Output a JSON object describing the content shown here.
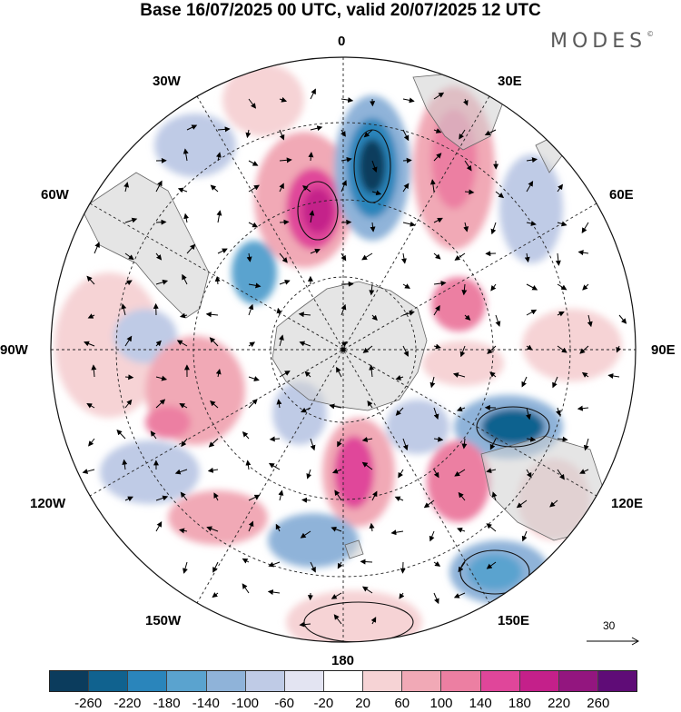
{
  "title": "Base 16/07/2025 00 UTC, valid 20/07/2025 12 UTC",
  "brand": "MODES",
  "brand_mark": "©",
  "map": {
    "projection": "south-polar-stereographic",
    "longitude_labels": [
      "0",
      "30E",
      "60E",
      "90E",
      "120E",
      "150E",
      "180",
      "150W",
      "120W",
      "90W",
      "60W",
      "30W"
    ]
  },
  "vector_scale": {
    "value": "30"
  },
  "colorbar": {
    "colors": [
      "#0b3c5d",
      "#10628f",
      "#2a85bb",
      "#5aa3cf",
      "#8fb3d9",
      "#bfcbe6",
      "#e3e4f2",
      "#ffffff",
      "#f6d3d5",
      "#f1a9b6",
      "#ec7fa2",
      "#e0469a",
      "#c4208a",
      "#93167f",
      "#5f0c77"
    ],
    "ticks": [
      "-260",
      "-220",
      "-180",
      "-140",
      "-100",
      "-60",
      "-20",
      "20",
      "60",
      "100",
      "140",
      "180",
      "220",
      "260"
    ]
  }
}
